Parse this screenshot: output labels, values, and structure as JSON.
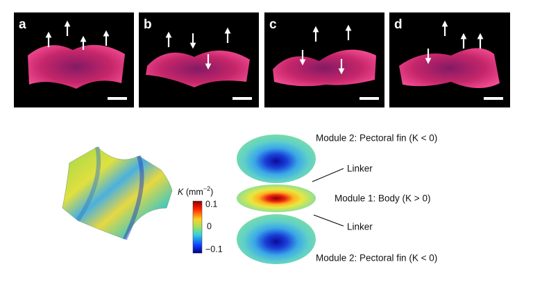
{
  "panels": [
    {
      "label": "a"
    },
    {
      "label": "b"
    },
    {
      "label": "c"
    },
    {
      "label": "d"
    }
  ],
  "colorbar": {
    "symbol": "K",
    "unit_open": "(mm",
    "exponent": "−2",
    "unit_close": ")",
    "ticks": [
      "0.1",
      "0",
      "−0.1"
    ]
  },
  "annotations": {
    "top_module": "Module 2: Pectoral fin (K < 0)",
    "upper_linker": "Linker",
    "body_module": "Module 1: Body (K > 0)",
    "lower_linker": "Linker",
    "bottom_module": "Module 2: Pectoral fin (K < 0)"
  }
}
